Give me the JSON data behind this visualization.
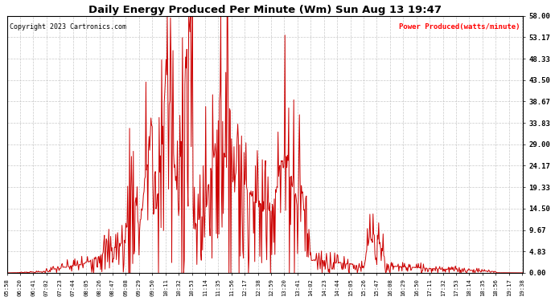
{
  "title": "Daily Energy Produced Per Minute (Wm) Sun Aug 13 19:47",
  "copyright": "Copyright 2023 Cartronics.com",
  "legend_label": "Power Produced(watts/minute)",
  "legend_color": "#ff0000",
  "title_color": "#000000",
  "line_color": "#cc0000",
  "background_color": "#ffffff",
  "grid_color": "#bbbbbb",
  "yticks": [
    0.0,
    4.83,
    9.67,
    14.5,
    19.33,
    24.17,
    29.0,
    33.83,
    38.67,
    43.5,
    48.33,
    53.17,
    58.0
  ],
  "ymax": 58.0,
  "ymin": 0.0,
  "xtick_labels": [
    "05:58",
    "06:20",
    "06:41",
    "07:02",
    "07:23",
    "07:44",
    "08:05",
    "08:26",
    "08:47",
    "09:08",
    "09:29",
    "09:50",
    "10:11",
    "10:32",
    "10:53",
    "11:14",
    "11:35",
    "11:56",
    "12:17",
    "12:38",
    "12:59",
    "13:20",
    "13:41",
    "14:02",
    "14:23",
    "14:44",
    "15:05",
    "15:26",
    "15:47",
    "16:08",
    "16:29",
    "16:50",
    "17:11",
    "17:32",
    "17:53",
    "18:14",
    "18:35",
    "18:56",
    "19:17",
    "19:38"
  ]
}
